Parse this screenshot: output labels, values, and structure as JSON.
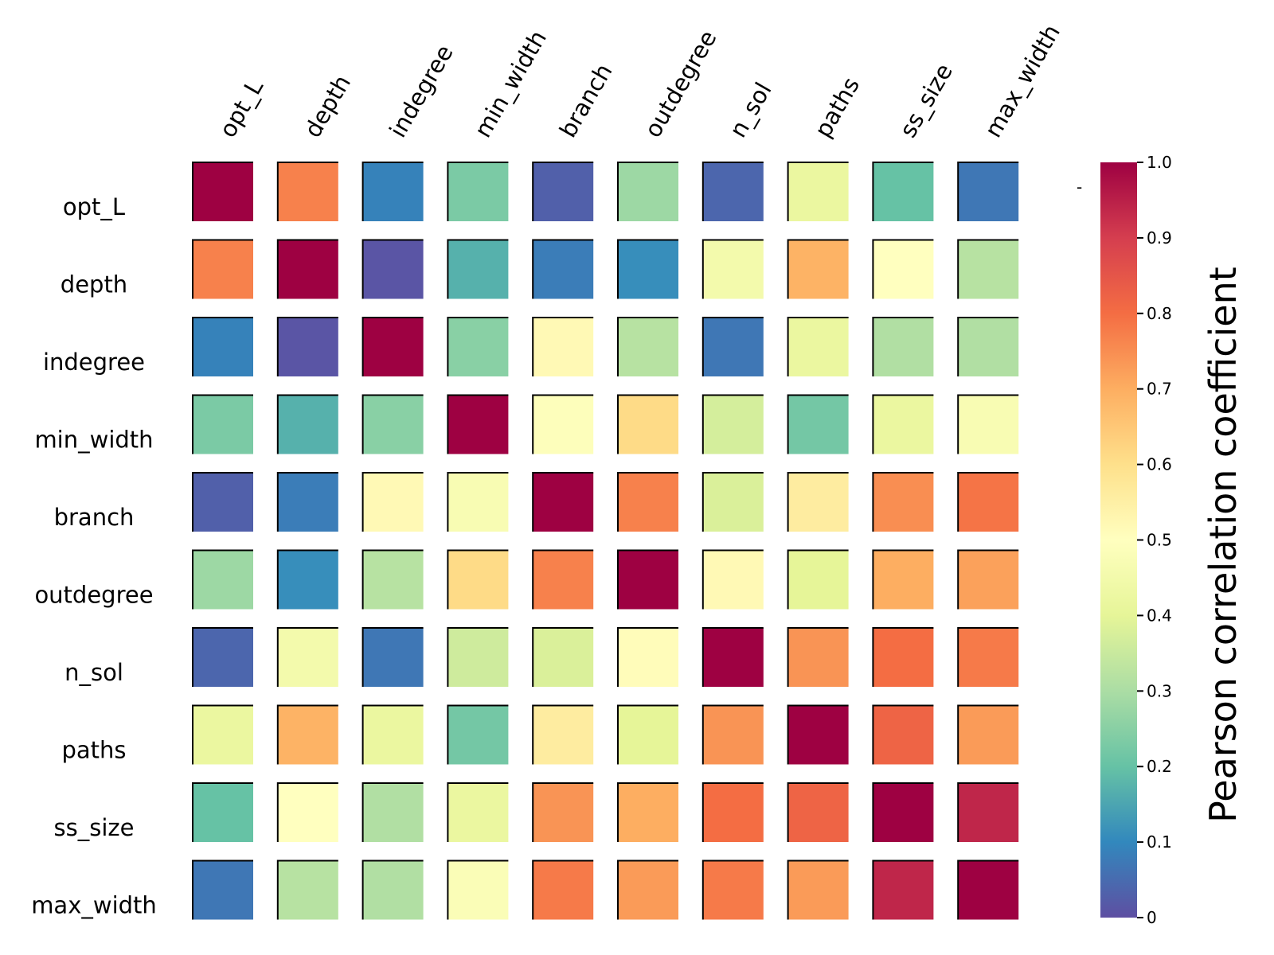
{
  "chart_data": {
    "type": "heatmap",
    "title": "",
    "row_labels": [
      "opt_L",
      "depth",
      "indegree",
      "min_width",
      "branch",
      "outdegree",
      "n_sol",
      "paths",
      "ss_size",
      "max_width"
    ],
    "col_labels": [
      "opt_L",
      "depth",
      "indegree",
      "min_width",
      "branch",
      "outdegree",
      "n_sol",
      "paths",
      "ss_size",
      "max_width"
    ],
    "values": [
      [
        1.0,
        0.77,
        0.09,
        0.23,
        0.03,
        0.28,
        0.04,
        0.42,
        0.2,
        0.07
      ],
      [
        0.77,
        1.0,
        0.01,
        0.17,
        0.08,
        0.11,
        0.45,
        0.69,
        0.5,
        0.32
      ],
      [
        0.09,
        0.01,
        1.0,
        0.25,
        0.52,
        0.32,
        0.07,
        0.42,
        0.31,
        0.31
      ],
      [
        0.23,
        0.17,
        0.25,
        1.0,
        0.49,
        0.61,
        0.37,
        0.22,
        0.42,
        0.47
      ],
      [
        0.03,
        0.08,
        0.52,
        0.47,
        1.0,
        0.77,
        0.38,
        0.56,
        0.75,
        0.79
      ],
      [
        0.28,
        0.11,
        0.32,
        0.61,
        0.77,
        1.0,
        0.52,
        0.4,
        0.7,
        0.72
      ],
      [
        0.04,
        0.45,
        0.07,
        0.36,
        0.38,
        0.51,
        1.0,
        0.74,
        0.8,
        0.78
      ],
      [
        0.42,
        0.69,
        0.42,
        0.22,
        0.56,
        0.4,
        0.74,
        1.0,
        0.82,
        0.73
      ],
      [
        0.2,
        0.5,
        0.31,
        0.42,
        0.74,
        0.7,
        0.8,
        0.82,
        1.0,
        0.94
      ],
      [
        0.07,
        0.32,
        0.31,
        0.48,
        0.78,
        0.73,
        0.78,
        0.73,
        0.94,
        1.0
      ]
    ],
    "colormap": "Spectral_r",
    "vmin": 0,
    "vmax": 1,
    "colorbar": {
      "label": "Pearson correlation coefficient",
      "ticks": [
        "0",
        "0.1",
        "0.2",
        "0.3",
        "0.4",
        "0.5",
        "0.6",
        "0.7",
        "0.8",
        "0.9",
        "1.0"
      ],
      "tick_values": [
        0,
        0.1,
        0.2,
        0.3,
        0.4,
        0.5,
        0.6,
        0.7,
        0.8,
        0.9,
        1.0
      ],
      "stray_mark": "-"
    }
  }
}
